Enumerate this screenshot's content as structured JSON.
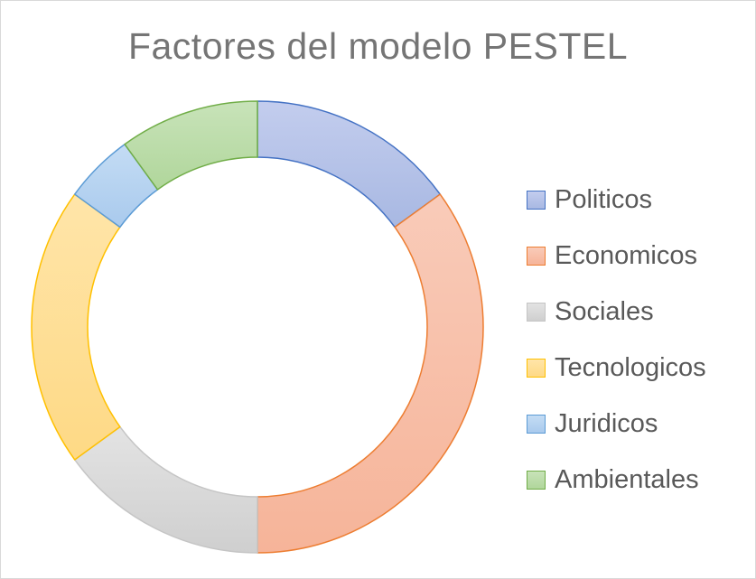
{
  "chart_data": {
    "type": "pie",
    "variant": "doughnut",
    "title": "Factores del modelo PESTEL",
    "categories": [
      "Politicos",
      "Economicos",
      "Sociales",
      "Tecnologicos",
      "Juridicos",
      "Ambientales"
    ],
    "values": [
      15,
      35,
      15,
      20,
      5,
      10
    ],
    "legend_position": "right",
    "colors": {
      "fill": [
        "#a8b8e2",
        "#f6b499",
        "#cfcfcf",
        "#fed985",
        "#a9caed",
        "#b0d69b"
      ],
      "stroke": [
        "#4472c4",
        "#ed7d31",
        "#c5c5c5",
        "#ffc000",
        "#5b9bd5",
        "#70ad47"
      ],
      "fill_highlight": [
        "#c3cdee",
        "#f9cbb9",
        "#e3e3e3",
        "#ffe5a9",
        "#c4dcf4",
        "#c8e3b9"
      ]
    }
  }
}
